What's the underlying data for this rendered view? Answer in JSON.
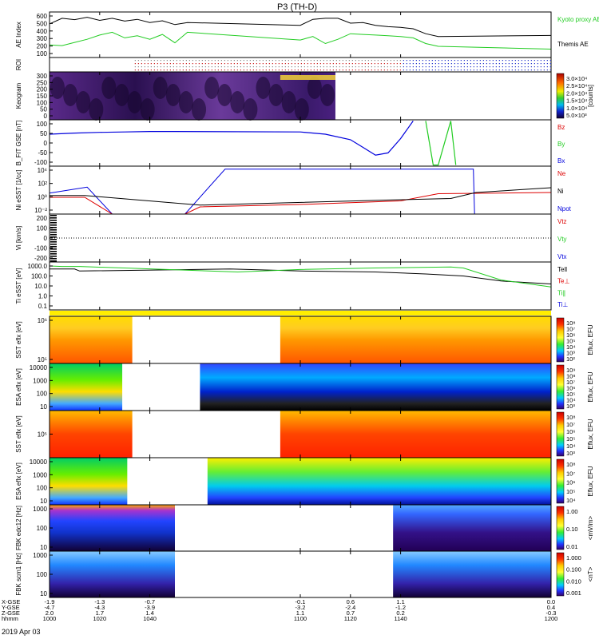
{
  "title": "P3 (TH-D)",
  "date_label": "2019 Apr 03",
  "colors": {
    "black": "#000000",
    "green": "#22cc22",
    "red": "#dd0000",
    "blue": "#0000dd",
    "yellow": "#ffee00"
  },
  "chart_data": {
    "type": "line",
    "xlim": [
      1000,
      1200
    ],
    "xticks": [
      1000,
      1020,
      1040,
      1100,
      1120,
      1140,
      1200
    ],
    "xticklabels": [
      "1000",
      "1020",
      "1040",
      "1100",
      "1120",
      "1140",
      "1200"
    ],
    "footer": {
      "row_labels": [
        "X-GSE",
        "Y-GSE",
        "Z-GSE",
        "hhmm"
      ],
      "columns": [
        {
          "x": 1000,
          "vals": [
            "-1.9",
            "-4.7",
            "2.0"
          ]
        },
        {
          "x": 1020,
          "vals": [
            "-1.3",
            "-4.3",
            "1.7"
          ]
        },
        {
          "x": 1040,
          "vals": [
            "-0.7",
            "-3.9",
            "1.4"
          ]
        },
        {
          "x": 1100,
          "vals": [
            "-0.1",
            "-3.2",
            "1.1"
          ]
        },
        {
          "x": 1120,
          "vals": [
            "0.6",
            "-2.4",
            "0.7"
          ]
        },
        {
          "x": 1140,
          "vals": [
            "1.1",
            "-1.2",
            "0.2"
          ]
        },
        {
          "x": 1200,
          "vals": [
            "0.0",
            "0.4",
            "-0.3"
          ]
        }
      ]
    },
    "panels": [
      {
        "id": "ae",
        "ylabel": "AE Index",
        "yticks": [
          "600",
          "500",
          "400",
          "300",
          "200",
          "100"
        ],
        "legend": [
          {
            "text": "Kyoto proxy AE",
            "color": "#22cc22"
          },
          {
            "text": "Themis AE",
            "color": "#000000"
          }
        ],
        "ylim": [
          0,
          650
        ],
        "series": [
          {
            "name": "Themis AE",
            "color": "#000000",
            "x": [
              1000,
              1005,
              1010,
              1015,
              1020,
              1025,
              1030,
              1035,
              1040,
              1045,
              1050,
              1055,
              1100,
              1105,
              1110,
              1115,
              1120,
              1125,
              1130,
              1135,
              1140,
              1145,
              1150,
              1155,
              1200
            ],
            "y": [
              480,
              560,
              540,
              575,
              530,
              560,
              520,
              545,
              500,
              525,
              470,
              500,
              460,
              545,
              560,
              560,
              490,
              500,
              460,
              440,
              430,
              410,
              340,
              300,
              315
            ]
          },
          {
            "name": "Kyoto proxy AE",
            "color": "#22cc22",
            "x": [
              1000,
              1005,
              1010,
              1015,
              1020,
              1025,
              1030,
              1035,
              1040,
              1045,
              1050,
              1055,
              1100,
              1105,
              1110,
              1115,
              1120,
              1125,
              1130,
              1135,
              1140,
              1145,
              1150,
              1155,
              1200
            ],
            "y": [
              180,
              170,
              215,
              260,
              320,
              360,
              280,
              310,
              260,
              330,
              210,
              360,
              250,
              300,
              200,
              260,
              340,
              330,
              320,
              310,
              300,
              280,
              200,
              160,
              120
            ]
          }
        ]
      },
      {
        "id": "roi",
        "ylabel": "ROI"
      },
      {
        "id": "keogram",
        "ylabel": "Keogram",
        "yticks": [
          "300",
          "250",
          "200",
          "150",
          "100",
          "50",
          "0"
        ],
        "xrange": [
          1000,
          1114
        ],
        "colorbar": {
          "ticks": [
            "3.0×10⁴",
            "2.5×10⁴",
            "2.0×10⁴",
            "1.5×10⁴",
            "1.0×10⁴",
            "5.0×10³"
          ],
          "label": "[counts]"
        }
      },
      {
        "id": "bfit",
        "ylabel": "B_FIT GSE [nT]",
        "yticks": [
          "100",
          "50",
          "0",
          "-50",
          "-100"
        ],
        "ylim": [
          -105,
          105
        ],
        "legend": [
          {
            "text": "Bz",
            "color": "#dd0000"
          },
          {
            "text": "By",
            "color": "#22cc22"
          },
          {
            "text": "Bx",
            "color": "#0000dd"
          }
        ],
        "series": [
          {
            "name": "Bx",
            "color": "#0000dd",
            "x": [
              1000,
              1010,
              1020,
              1030,
              1040,
              1050,
              1100,
              1110,
              1120,
              1125,
              1130,
              1135,
              1140,
              1145
            ],
            "y": [
              40,
              45,
              48,
              50,
              52,
              52,
              50,
              40,
              15,
              -20,
              -55,
              -45,
              20,
              100
            ]
          },
          {
            "name": "By",
            "color": "#22cc22",
            "x": [
              1150,
              1153,
              1155,
              1160,
              1162
            ],
            "y": [
              100,
              -100,
              -100,
              100,
              -100
            ]
          }
        ]
      },
      {
        "id": "ni",
        "ylabel": "Ni eSST [1/cc]",
        "yticks": [
          "10⁴",
          "10²",
          "10⁰",
          "10⁻²"
        ],
        "ylog": [
          -3,
          5
        ],
        "legend": [
          {
            "text": "Ne",
            "color": "#dd0000"
          },
          {
            "text": "Ni",
            "color": "#000000"
          },
          {
            "text": "Npot",
            "color": "#0000dd"
          }
        ],
        "series": [
          {
            "name": "Npot",
            "color": "#0000dd",
            "x": [
              1000,
              1015,
              1025,
              1054,
              1070,
              1169,
              1169.5,
              1172
            ],
            "y": [
              0.5,
              1.5,
              -3,
              -3,
              4.5,
              4.5,
              -3,
              -3
            ]
          },
          {
            "name": "Ne",
            "color": "#dd0000",
            "x": [
              1000,
              1014,
              1025,
              1054,
              1060,
              1100,
              1140,
              1155,
              1200
            ],
            "y": [
              -0.2,
              -0.2,
              -3,
              -3,
              -1.8,
              -1.4,
              -0.8,
              0.4,
              0.6
            ]
          },
          {
            "name": "Ni",
            "color": "#000000",
            "x": [
              1000,
              1014,
              1060,
              1140,
              1160,
              1170,
              1200
            ],
            "y": [
              0.1,
              0.1,
              -1.5,
              -0.6,
              -0.4,
              0.6,
              1.4
            ]
          }
        ]
      },
      {
        "id": "vi",
        "ylabel": "Vi [km/s]",
        "yticks": [
          "200",
          "100",
          "0",
          "-100",
          "-200"
        ],
        "legend": [
          {
            "text": "Vtz",
            "color": "#dd0000"
          },
          {
            "text": "Vty",
            "color": "#22cc22"
          },
          {
            "text": "Vtx",
            "color": "#0000dd"
          }
        ]
      },
      {
        "id": "ti",
        "ylabel": "Ti eSST [eV]",
        "yticks": [
          "1000.0",
          "100.0",
          "10.0",
          "1.0",
          "0.1"
        ],
        "ylog": [
          -1.3,
          3.5
        ],
        "legend": [
          {
            "text": "Tell",
            "color": "#000000"
          },
          {
            "text": "Te⊥",
            "color": "#dd0000"
          },
          {
            "text": "Ti∥",
            "color": "#22cc22"
          },
          {
            "text": "Ti⊥",
            "color": "#0000dd"
          }
        ],
        "series": [
          {
            "name": "Tell",
            "color": "#000000",
            "x": [
              1000,
              1010,
              1012,
              1072,
              1100,
              1130,
              1150,
              1165,
              1180,
              1200
            ],
            "y": [
              2.8,
              2.8,
              2.6,
              2.8,
              2.6,
              2.5,
              2.3,
              2.1,
              1.6,
              1.3
            ]
          },
          {
            "name": "Ti∥",
            "color": "#22cc22",
            "x": [
              1000,
              1005,
              1012,
              1075,
              1100,
              1130,
              1160,
              1165,
              1180,
              1200
            ],
            "y": [
              3.1,
              3.05,
              3.05,
              2.5,
              2.75,
              2.9,
              3.0,
              2.9,
              1.7,
              1.0
            ]
          }
        ]
      },
      {
        "id": "bar",
        "ylabel": ""
      },
      {
        "id": "sst1",
        "ylabel": "SST eflx [eV]",
        "yticks": [
          "10⁶",
          "10⁵"
        ],
        "segments": [
          [
            1000,
            1033
          ],
          [
            1092,
            1200
          ]
        ],
        "colorbar": {
          "ticks": [
            "10⁸",
            "10⁷",
            "10⁶",
            "10⁵",
            "10⁴",
            "10³",
            "10²"
          ],
          "label": "Eflux, EFU"
        }
      },
      {
        "id": "esa1",
        "ylabel": "ESA eflx [eV]",
        "yticks": [
          "10000",
          "1000",
          "100",
          "10"
        ],
        "segments": [
          [
            1000,
            1029
          ],
          [
            1060,
            1200
          ]
        ],
        "colorbar": {
          "ticks": [
            "10⁹",
            "10⁸",
            "10⁷",
            "10⁶",
            "10⁵",
            "10⁴",
            "10³"
          ],
          "label": "Eflux, EFU"
        }
      },
      {
        "id": "sst2",
        "ylabel": "SST eflx [eV]",
        "yticks": [
          "10⁵"
        ],
        "segments": [
          [
            1000,
            1033
          ],
          [
            1092,
            1200
          ]
        ],
        "colorbar": {
          "ticks": [
            "10⁸",
            "10⁷",
            "10⁶",
            "10⁵",
            "10⁴",
            "10³"
          ],
          "label": "Eflux, EFU"
        }
      },
      {
        "id": "esa2",
        "ylabel": "ESA eflx [eV]",
        "yticks": [
          "10000",
          "1000",
          "100",
          "10"
        ],
        "segments": [
          [
            1000,
            1031
          ],
          [
            1063,
            1200
          ]
        ],
        "colorbar": {
          "ticks": [
            "10⁸",
            "10⁷",
            "10⁶",
            "10⁵",
            "10⁴"
          ],
          "label": "Eflux, EFU"
        }
      },
      {
        "id": "fbk1",
        "ylabel": "FBK edc12 [Hz]",
        "yticks": [
          "1000",
          "100",
          "10"
        ],
        "segments": [
          [
            1000,
            1050
          ],
          [
            1137,
            1200
          ]
        ],
        "colorbar": {
          "ticks": [
            "1.00",
            "0.10",
            "0.01"
          ],
          "label": "<mV/m>"
        }
      },
      {
        "id": "fbk2",
        "ylabel": "FBK scm1 [Hz]",
        "yticks": [
          "1000",
          "100",
          "10"
        ],
        "segments": [
          [
            1000,
            1050
          ],
          [
            1137,
            1200
          ]
        ],
        "colorbar": {
          "ticks": [
            "1.000",
            "0.100",
            "0.010",
            "0.001"
          ],
          "label": "<nT>"
        }
      }
    ]
  }
}
